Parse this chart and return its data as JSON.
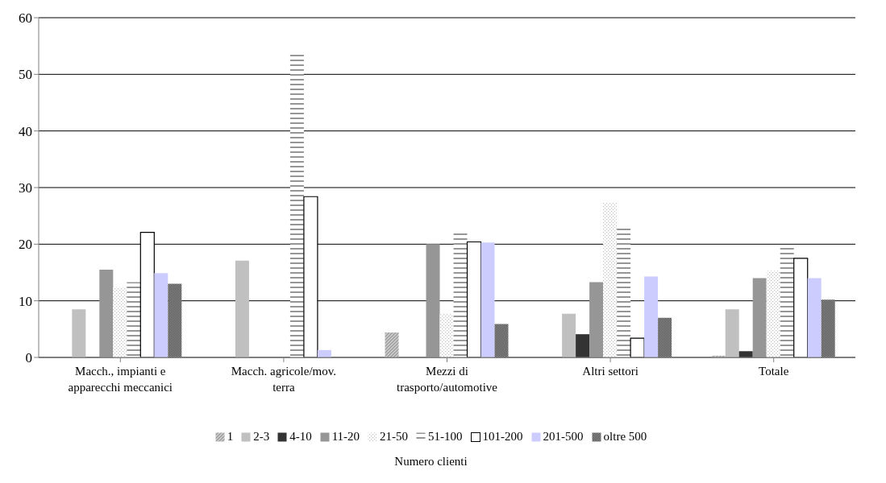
{
  "chart_data": {
    "type": "bar",
    "categories": [
      "Macch., impianti e apparecchi meccanici",
      "Macch. agricole/mov. terra",
      "Mezzi di trasporto/automotive",
      "Altri settori",
      "Totale"
    ],
    "series": [
      {
        "name": "1",
        "color": "#a0a0a0",
        "values": [
          0,
          0,
          4.4,
          0,
          0.3
        ]
      },
      {
        "name": "2-3",
        "color": "#c0c0c0",
        "values": [
          8.5,
          17.1,
          0,
          7.7,
          8.5
        ]
      },
      {
        "name": "4-10",
        "color": "#333333",
        "values": [
          0,
          0,
          0,
          4.1,
          1.1
        ]
      },
      {
        "name": "11-20",
        "color": "#969696",
        "values": [
          15.5,
          0,
          20,
          13.3,
          14
        ]
      },
      {
        "name": "21-50",
        "color": "#c0c0c0",
        "values": [
          12.4,
          0,
          7.7,
          27.3,
          15.3
        ]
      },
      {
        "name": "51-100",
        "color": "#969696",
        "values": [
          13.3,
          53.5,
          22,
          23,
          19.5
        ]
      },
      {
        "name": "101-200",
        "color": "#ffffff",
        "values": [
          22.1,
          28.4,
          20.4,
          3.4,
          17.5
        ]
      },
      {
        "name": "201-500",
        "color": "#ccccff",
        "values": [
          14.9,
          1.3,
          20.3,
          14.3,
          14
        ]
      },
      {
        "name": "oltre 500",
        "color": "#333333",
        "values": [
          13,
          0,
          5.9,
          7,
          10.2
        ]
      }
    ],
    "ylim": [
      0,
      60
    ],
    "yticks": [
      0,
      10,
      20,
      30,
      40,
      50,
      60
    ],
    "grid": "y",
    "legend": "bottom",
    "legend_title": "Numero clienti"
  }
}
